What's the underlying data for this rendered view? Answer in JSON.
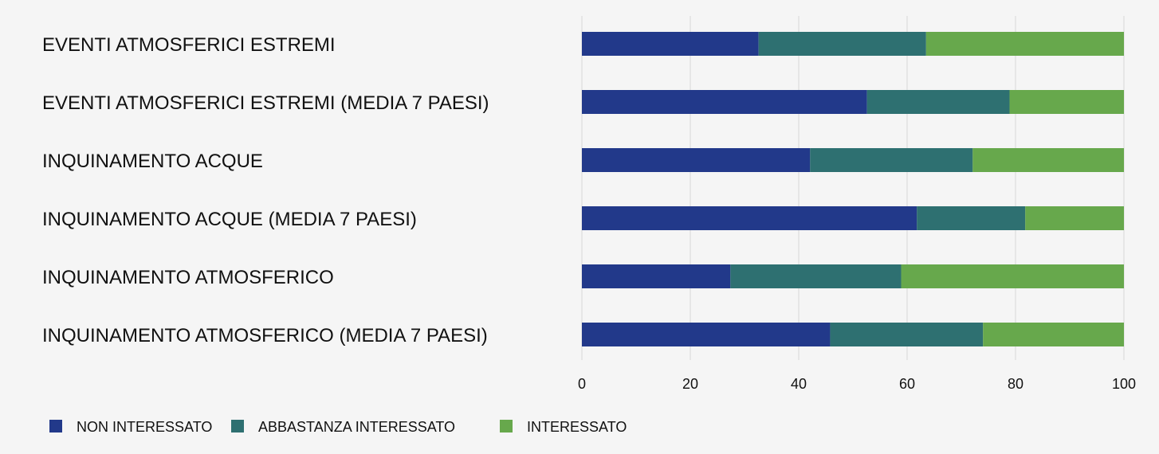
{
  "chart_data": {
    "type": "bar",
    "orientation": "horizontal",
    "stacked": true,
    "categories": [
      "EVENTI ATMOSFERICI ESTREMI",
      "EVENTI ATMOSFERICI ESTREMI (MEDIA 7 PAESI)",
      "INQUINAMENTO ACQUE",
      "INQUINAMENTO ACQUE (MEDIA 7 PAESI)",
      "INQUINAMENTO ATMOSFERICO",
      "INQUINAMENTO ATMOSFERICO (MEDIA 7 PAESI)"
    ],
    "series": [
      {
        "name": "NON INTERESSATO",
        "color": "#22398a",
        "values": [
          32.6,
          52.6,
          42.1,
          61.8,
          27.4,
          45.8
        ]
      },
      {
        "name": "ABBASTANZA INTERESSATO",
        "color": "#2e7071",
        "values": [
          30.9,
          26.3,
          30.0,
          20.0,
          31.5,
          28.2
        ]
      },
      {
        "name": "INTERESSATO",
        "color": "#67a84c",
        "values": [
          36.5,
          21.1,
          27.9,
          18.2,
          41.1,
          26.0
        ]
      }
    ],
    "xlim": [
      0,
      100
    ],
    "xticks": [
      "0",
      "20",
      "40",
      "60",
      "80",
      "100"
    ],
    "grid": true,
    "legend_position": "bottom-left"
  }
}
